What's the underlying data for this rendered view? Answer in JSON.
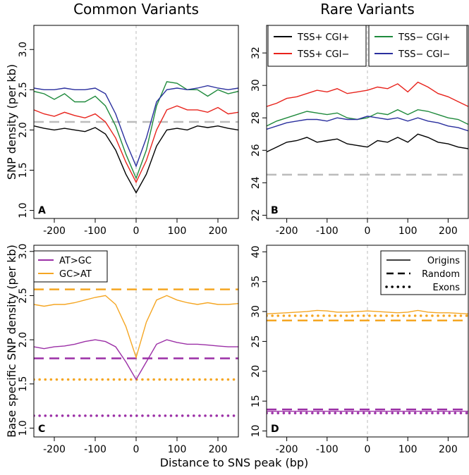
{
  "chart_data": [
    {
      "type": "line",
      "title": "Common Variants",
      "ylabel": "SNP density (per kb)",
      "panel": "A",
      "x": [
        -250,
        -225,
        -200,
        -175,
        -150,
        -125,
        -100,
        -75,
        -50,
        -25,
        0,
        25,
        50,
        75,
        100,
        125,
        150,
        175,
        200,
        225,
        250
      ],
      "xlim": [
        -250,
        250
      ],
      "xticks": [
        -200,
        -100,
        0,
        100,
        200
      ],
      "ylim": [
        0.9,
        3.3
      ],
      "yticks": [
        {
          "value": 1,
          "label": "1.0"
        },
        1.5,
        {
          "value": 2,
          "label": "2.0"
        },
        2.5,
        {
          "value": 3,
          "label": "3.0"
        }
      ],
      "vline": 0,
      "hlines": [
        {
          "value": 2.1,
          "color": "#bbbbbb",
          "style": "dashed"
        }
      ],
      "series": [
        {
          "name": "TSS+ CGI+",
          "color": "#000000",
          "values": [
            2.05,
            2.02,
            2.0,
            2.02,
            2.0,
            1.98,
            2.03,
            1.95,
            1.75,
            1.45,
            1.22,
            1.45,
            1.8,
            2.0,
            2.02,
            2.0,
            2.05,
            2.03,
            2.05,
            2.02,
            2.0
          ]
        },
        {
          "name": "TSS+ CGI−",
          "color": "#e8231c",
          "values": [
            2.25,
            2.2,
            2.17,
            2.22,
            2.18,
            2.15,
            2.2,
            2.1,
            1.9,
            1.6,
            1.35,
            1.62,
            2.0,
            2.25,
            2.3,
            2.25,
            2.25,
            2.22,
            2.28,
            2.2,
            2.22
          ]
        },
        {
          "name": "TSS− CGI+",
          "color": "#1f8a3c",
          "values": [
            2.48,
            2.45,
            2.38,
            2.45,
            2.35,
            2.35,
            2.42,
            2.3,
            2.05,
            1.7,
            1.4,
            1.75,
            2.3,
            2.6,
            2.58,
            2.5,
            2.5,
            2.42,
            2.5,
            2.45,
            2.48
          ]
        },
        {
          "name": "TSS− CGI−",
          "color": "#2a2f9e",
          "values": [
            2.52,
            2.5,
            2.5,
            2.52,
            2.5,
            2.5,
            2.52,
            2.45,
            2.2,
            1.85,
            1.55,
            1.9,
            2.35,
            2.5,
            2.52,
            2.5,
            2.52,
            2.55,
            2.52,
            2.5,
            2.52
          ]
        }
      ]
    },
    {
      "type": "line",
      "title": "Rare Variants",
      "panel": "B",
      "legend": "top",
      "x": [
        -250,
        -225,
        -200,
        -175,
        -150,
        -125,
        -100,
        -75,
        -50,
        -25,
        0,
        25,
        50,
        75,
        100,
        125,
        150,
        175,
        200,
        225,
        250
      ],
      "xlim": [
        -250,
        250
      ],
      "xticks": [
        -200,
        -100,
        0,
        100,
        200
      ],
      "ylim": [
        21.8,
        33.7
      ],
      "yticks": [
        22,
        24,
        26,
        28,
        30,
        32
      ],
      "vline": 0,
      "hlines": [
        {
          "value": 24.5,
          "color": "#bbbbbb",
          "style": "dashed"
        }
      ],
      "series": [
        {
          "name": "TSS+ CGI+",
          "color": "#000000",
          "values": [
            25.9,
            26.2,
            26.5,
            26.6,
            26.8,
            26.5,
            26.6,
            26.7,
            26.4,
            26.3,
            26.2,
            26.6,
            26.5,
            26.8,
            26.5,
            27.0,
            26.8,
            26.5,
            26.4,
            26.2,
            26.1
          ]
        },
        {
          "name": "TSS+ CGI−",
          "color": "#e8231c",
          "values": [
            28.7,
            28.9,
            29.2,
            29.3,
            29.5,
            29.7,
            29.6,
            29.8,
            29.5,
            29.6,
            29.7,
            29.9,
            29.8,
            30.1,
            29.6,
            30.2,
            29.9,
            29.5,
            29.3,
            29.0,
            28.7
          ]
        },
        {
          "name": "TSS− CGI+",
          "color": "#1f8a3c",
          "values": [
            27.5,
            27.8,
            28.0,
            28.2,
            28.4,
            28.3,
            28.2,
            28.3,
            28.0,
            27.9,
            28.0,
            28.3,
            28.2,
            28.5,
            28.2,
            28.5,
            28.4,
            28.2,
            28.0,
            27.9,
            27.6
          ]
        },
        {
          "name": "TSS− CGI−",
          "color": "#2a2f9e",
          "values": [
            27.3,
            27.5,
            27.7,
            27.8,
            27.9,
            27.9,
            27.8,
            28.0,
            27.9,
            27.9,
            28.1,
            28.0,
            27.9,
            28.0,
            27.8,
            28.0,
            27.8,
            27.7,
            27.5,
            27.4,
            27.2
          ]
        }
      ]
    },
    {
      "type": "line",
      "ylabel": "Base specific SNP density (per kb)",
      "panel": "C",
      "legend": "top-left",
      "x": [
        -250,
        -225,
        -200,
        -175,
        -150,
        -125,
        -100,
        -75,
        -50,
        -25,
        0,
        25,
        50,
        75,
        100,
        125,
        150,
        175,
        200,
        225,
        250
      ],
      "xlim": [
        -250,
        250
      ],
      "xticks": [
        -200,
        -100,
        0,
        100,
        200
      ],
      "ylim": [
        0.9,
        3.07
      ],
      "yticks": [
        {
          "value": 1,
          "label": "1.0"
        },
        1.5,
        {
          "value": 2,
          "label": "2.0"
        },
        2.5,
        {
          "value": 3,
          "label": "3.0"
        }
      ],
      "vline": 0,
      "hlines": [
        {
          "value": 2.57,
          "color": "#f5a623",
          "style": "dashed"
        },
        {
          "value": 1.79,
          "color": "#9b2fa6",
          "style": "dashed"
        },
        {
          "value": 1.55,
          "color": "#f5a623",
          "style": "dotted"
        },
        {
          "value": 1.14,
          "color": "#9b2fa6",
          "style": "dotted"
        }
      ],
      "series": [
        {
          "name": "AT>GC",
          "color": "#9b2fa6",
          "values": [
            1.92,
            1.9,
            1.92,
            1.93,
            1.95,
            1.98,
            2.0,
            1.98,
            1.92,
            1.75,
            1.55,
            1.75,
            1.95,
            2.0,
            1.97,
            1.95,
            1.95,
            1.94,
            1.93,
            1.92,
            1.92
          ]
        },
        {
          "name": "GC>AT",
          "color": "#f5a623",
          "values": [
            2.4,
            2.38,
            2.4,
            2.4,
            2.42,
            2.45,
            2.48,
            2.5,
            2.4,
            2.15,
            1.8,
            2.2,
            2.45,
            2.5,
            2.45,
            2.42,
            2.4,
            2.42,
            2.4,
            2.4,
            2.41
          ]
        }
      ]
    },
    {
      "type": "line",
      "panel": "D",
      "xlabel": "Distance to SNS peak (bp)",
      "x": [
        -250,
        -225,
        -200,
        -175,
        -150,
        -125,
        -100,
        -75,
        -50,
        -25,
        0,
        25,
        50,
        75,
        100,
        125,
        150,
        175,
        200,
        225,
        250
      ],
      "xlim": [
        -250,
        250
      ],
      "xticks": [
        -200,
        -100,
        0,
        100,
        200
      ],
      "ylim": [
        9.0,
        41.1
      ],
      "yticks": [
        10,
        15,
        20,
        25,
        30,
        35,
        40
      ],
      "vline": 0,
      "hlines": [
        {
          "value": 28.5,
          "color": "#f5a623",
          "style": "dashed"
        },
        {
          "value": 13.6,
          "color": "#9b2fa6",
          "style": "dashed"
        },
        {
          "value": 29.3,
          "color": "#f5a623",
          "style": "dotted"
        },
        {
          "value": 13.0,
          "color": "#9b2fa6",
          "style": "dotted"
        }
      ],
      "style_legend": [
        {
          "label": "Origins",
          "style": "solid"
        },
        {
          "label": "Random",
          "style": "dashed"
        },
        {
          "label": "Exons",
          "style": "dotted"
        }
      ],
      "series": [
        {
          "color": "#9b2fa6",
          "values": [
            13.3,
            13.3,
            13.3,
            13.3,
            13.3,
            13.3,
            13.3,
            13.3,
            13.3,
            13.3,
            13.3,
            13.3,
            13.3,
            13.3,
            13.3,
            13.3,
            13.3,
            13.3,
            13.3,
            13.3,
            13.3
          ]
        },
        {
          "color": "#f5a623",
          "values": [
            29.6,
            29.7,
            29.8,
            29.9,
            30.0,
            30.2,
            30.1,
            29.9,
            29.9,
            30.0,
            30.1,
            30.0,
            29.9,
            29.8,
            29.9,
            30.2,
            29.9,
            29.8,
            29.8,
            29.7,
            29.6
          ]
        }
      ]
    }
  ]
}
